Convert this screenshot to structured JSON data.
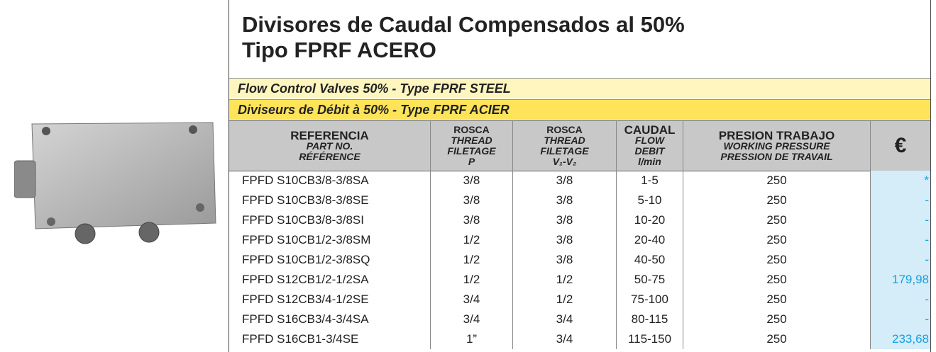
{
  "header": {
    "title_lines": [
      "Divisores de Caudal Compensados al 50%",
      "Tipo FPRF ACERO"
    ],
    "subtitle_en": "Flow Control Valves 50% - Type FPRF STEEL",
    "subtitle_fr": "Diviseurs de Débit à 50% - Type FPRF ACIER"
  },
  "table": {
    "columns": [
      [
        "REFERENCIA",
        "PART NO.",
        "RÉFÉRENCE"
      ],
      [
        "ROSCA",
        "THREAD",
        "FILETAGE",
        "P"
      ],
      [
        "ROSCA",
        "THREAD",
        "FILETAGE",
        "V₁-V₂"
      ],
      [
        "CAUDAL",
        "FLOW",
        "DEBIT",
        "l/min"
      ],
      [
        "PRESION TRABAJO",
        "WORKING PRESSURE",
        "PRESSION DE TRAVAIL"
      ],
      [
        "€"
      ]
    ],
    "rows": [
      [
        "FPFD S10CB3/8-3/8SA",
        "3/8",
        "3/8",
        "1-5",
        "250",
        "*"
      ],
      [
        "FPFD S10CB3/8-3/8SE",
        "3/8",
        "3/8",
        "5-10",
        "250",
        "-"
      ],
      [
        "FPFD S10CB3/8-3/8SI",
        "3/8",
        "3/8",
        "10-20",
        "250",
        "-"
      ],
      [
        "FPFD S10CB1/2-3/8SM",
        "1/2",
        "3/8",
        "20-40",
        "250",
        "-"
      ],
      [
        "FPFD S10CB1/2-3/8SQ",
        "1/2",
        "3/8",
        "40-50",
        "250",
        "-"
      ],
      [
        "FPFD S12CB1/2-1/2SA",
        "1/2",
        "1/2",
        "50-75",
        "250",
        "179,98"
      ],
      [
        "FPFD S12CB3/4-1/2SE",
        "3/4",
        "1/2",
        "75-100",
        "250",
        "-"
      ],
      [
        "FPFD S16CB3/4-3/4SA",
        "3/4",
        "3/4",
        "80-115",
        "250",
        "-"
      ],
      [
        "FPFD S16CB1-3/4SE",
        "1”",
        "3/4",
        "115-150",
        "250",
        "233,68"
      ]
    ]
  }
}
